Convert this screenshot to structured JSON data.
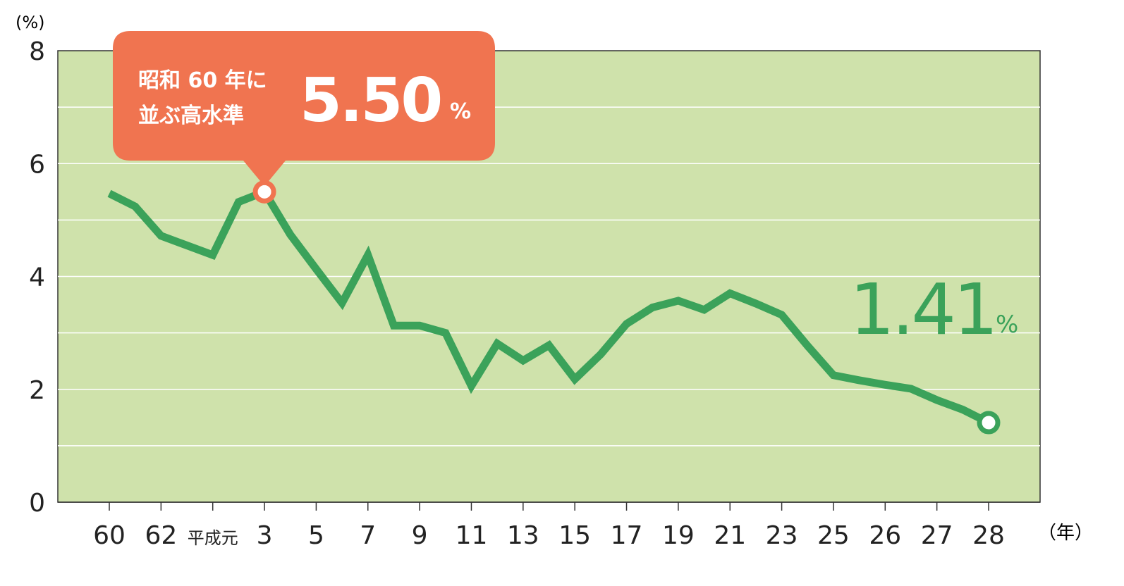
{
  "chart_data": {
    "type": "line",
    "y_label": "(%)",
    "x_label": "（年）",
    "categories": [
      "60",
      null,
      "62",
      null,
      "平成元",
      null,
      "3",
      null,
      "5",
      null,
      "7",
      null,
      "9",
      null,
      "11",
      null,
      "13",
      null,
      "15",
      null,
      "17",
      null,
      "19",
      null,
      "21",
      null,
      "23",
      null,
      "25",
      null,
      "26",
      null,
      "27",
      null,
      "28"
    ],
    "values": [
      5.47,
      5.24,
      4.72,
      4.55,
      4.38,
      5.32,
      5.5,
      4.74,
      4.13,
      3.53,
      4.38,
      3.13,
      3.13,
      3.0,
      2.06,
      2.81,
      2.51,
      2.78,
      2.18,
      2.62,
      3.16,
      3.45,
      3.57,
      3.41,
      3.7,
      3.52,
      3.32,
      2.77,
      2.25,
      2.16,
      2.08,
      2.01,
      1.81,
      1.64,
      1.41
    ],
    "value_labels": [
      null,
      null,
      null,
      null,
      null,
      null,
      "5.50",
      null,
      null,
      null,
      null,
      null,
      null,
      null,
      null,
      null,
      null,
      null,
      null,
      null,
      null,
      null,
      null,
      null,
      null,
      null,
      null,
      null,
      null,
      null,
      null,
      null,
      null,
      null,
      "1.41"
    ],
    "value_label_unit": "%",
    "callout_lines": [
      "昭和 60 年に",
      "並ぶ高水準"
    ],
    "color": "#3ba25a",
    "callout_color": "#f07450",
    "background": "#cfe2ab",
    "ylim": [
      0,
      8
    ],
    "yticks": [
      0,
      2,
      4,
      6,
      8
    ],
    "minor_yticks": [
      1,
      3,
      5,
      7
    ],
    "grid": true
  }
}
